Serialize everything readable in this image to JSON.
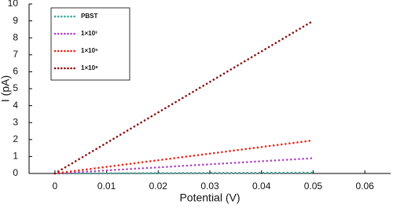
{
  "chart_data": {
    "type": "line",
    "x_label": "Potential (V)",
    "y_label": "I (pA)",
    "x": [
      0,
      0.01,
      0.02,
      0.03,
      0.04,
      0.05
    ],
    "series": [
      {
        "name": "PBST",
        "color": "#3aa89a",
        "values": [
          0,
          0.01,
          0.02,
          0.03,
          0.04,
          0.05
        ]
      },
      {
        "name": "1×10³",
        "color": "#b044c8",
        "values": [
          0,
          0.18,
          0.36,
          0.54,
          0.72,
          0.9
        ]
      },
      {
        "name": "1×10⁵",
        "color": "#e8291c",
        "values": [
          0,
          0.39,
          0.78,
          1.17,
          1.56,
          1.95
        ]
      },
      {
        "name": "1×10⁸",
        "color": "#8b0f0f",
        "values": [
          0,
          1.8,
          3.6,
          5.4,
          7.2,
          9.0
        ]
      }
    ],
    "xlim": [
      -0.005,
      0.065
    ],
    "xticks": [
      0,
      0.01,
      0.02,
      0.03,
      0.04,
      0.05,
      0.06
    ],
    "ylim": [
      0,
      10
    ],
    "yticks": [
      0,
      1,
      2,
      3,
      4,
      5,
      6,
      7,
      8,
      9,
      10
    ],
    "legend": "upper left"
  }
}
